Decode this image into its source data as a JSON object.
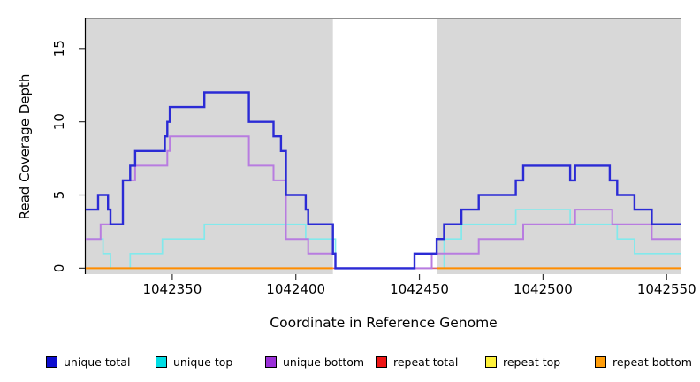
{
  "figure": {
    "background": "#ffffff",
    "x_axis_title": "Coordinate in Reference Genome",
    "y_axis_title": "Read Coverage Depth"
  },
  "legend": {
    "position": "bottom",
    "items": [
      {
        "label": "unique total",
        "marker_color": "#0d0dcf"
      },
      {
        "label": "unique top",
        "marker_color": "#00dde4"
      },
      {
        "label": "unique bottom",
        "marker_color": "#9a30d8"
      },
      {
        "label": "repeat total",
        "marker_color": "#ee1616"
      },
      {
        "label": "repeat top",
        "marker_color": "#fef13a"
      },
      {
        "label": "repeat bottom",
        "marker_color": "#ff9d0a"
      }
    ]
  },
  "chart_data": {
    "type": "line",
    "subtype": "step",
    "title": "",
    "xlabel": "Coordinate in Reference Genome",
    "ylabel": "Read Coverage Depth",
    "xlim": [
      1042315,
      1042556
    ],
    "ylim": [
      -0.4,
      17.1
    ],
    "grid": false,
    "panel_bg": "#d8d8d8",
    "panel_border_top": "#909090",
    "panel_border_right": "#b5b5b5",
    "axis_color": "#000000",
    "gap_region": {
      "x_start": 1042415,
      "x_end": 1042457,
      "color": "#ffffff"
    },
    "x_ticks": [
      1042350,
      1042400,
      1042450,
      1042500,
      1042550
    ],
    "x_tick_labels": [
      "1042350",
      "1042400",
      "1042450",
      "1042500",
      "1042550"
    ],
    "y_ticks": [
      0,
      5,
      10,
      15
    ],
    "y_tick_labels": [
      "0",
      "5",
      "10",
      "15"
    ],
    "series": [
      {
        "name": "unique top",
        "line_color": "#82e9ec",
        "line_width": 1.7,
        "draw_order": 1,
        "segments": [
          {
            "points": [
              [
                1042315,
                2
              ],
              [
                1042322,
                1
              ],
              [
                1042325,
                0
              ],
              [
                1042333,
                1
              ],
              [
                1042346,
                2
              ],
              [
                1042363,
                3
              ],
              [
                1042404,
                2
              ],
              [
                1042416,
                0
              ],
              [
                1042460,
                2
              ],
              [
                1042467,
                3
              ],
              [
                1042489,
                4
              ],
              [
                1042511,
                3
              ],
              [
                1042530,
                2
              ],
              [
                1042537,
                1
              ]
            ],
            "xend": 1042556
          }
        ]
      },
      {
        "name": "repeat total",
        "line_color": "#e0607a",
        "line_width": 1.5,
        "draw_order": 2,
        "segments": [
          {
            "points": [
              [
                1042415,
                0
              ]
            ],
            "xend": 1042457
          }
        ]
      },
      {
        "name": "repeat top",
        "line_color": "#f2f200",
        "line_width": 1.5,
        "draw_order": 3,
        "segments": [
          {
            "points": [
              [
                1042315,
                0
              ]
            ],
            "xend": 1042415
          },
          {
            "points": [
              [
                1042457,
                0
              ]
            ],
            "xend": 1042556
          }
        ]
      },
      {
        "name": "unique bottom",
        "line_color": "#b87ce0",
        "line_width": 2,
        "draw_order": 4,
        "segments": [
          {
            "points": [
              [
                1042315,
                2
              ],
              [
                1042321,
                3
              ],
              [
                1042330,
                6
              ],
              [
                1042335,
                7
              ],
              [
                1042348,
                8
              ],
              [
                1042349,
                9
              ],
              [
                1042381,
                7
              ],
              [
                1042391,
                6
              ],
              [
                1042396,
                2
              ],
              [
                1042405,
                1
              ],
              [
                1042416,
                0
              ],
              [
                1042455,
                1
              ],
              [
                1042474,
                2
              ],
              [
                1042492,
                3
              ],
              [
                1042513,
                4
              ],
              [
                1042528,
                3
              ],
              [
                1042544,
                2
              ]
            ],
            "xend": 1042556
          }
        ]
      },
      {
        "name": "unique total",
        "line_color": "#2b2bd5",
        "line_width": 2.4,
        "draw_order": 5,
        "segments": [
          {
            "points": [
              [
                1042315,
                4
              ],
              [
                1042320,
                5
              ],
              [
                1042324,
                4
              ],
              [
                1042325,
                3
              ],
              [
                1042330,
                6
              ],
              [
                1042333,
                7
              ],
              [
                1042335,
                8
              ],
              [
                1042347,
                9
              ],
              [
                1042348,
                10
              ],
              [
                1042349,
                11
              ],
              [
                1042363,
                12
              ],
              [
                1042381,
                10
              ],
              [
                1042391,
                9
              ],
              [
                1042394,
                8
              ],
              [
                1042396,
                5
              ],
              [
                1042404,
                4
              ],
              [
                1042405,
                3
              ],
              [
                1042415,
                1
              ],
              [
                1042416,
                0
              ],
              [
                1042448,
                1
              ],
              [
                1042457,
                2
              ],
              [
                1042460,
                3
              ],
              [
                1042467,
                4
              ],
              [
                1042474,
                5
              ],
              [
                1042489,
                6
              ],
              [
                1042492,
                7
              ],
              [
                1042511,
                6
              ],
              [
                1042513,
                7
              ],
              [
                1042527,
                6
              ],
              [
                1042530,
                5
              ],
              [
                1042537,
                4
              ],
              [
                1042544,
                3
              ]
            ],
            "xend": 1042556
          }
        ]
      },
      {
        "name": "repeat bottom",
        "line_color": "#ff8c00",
        "line_width": 2,
        "draw_order": 6,
        "segments": [
          {
            "points": [
              [
                1042315,
                0
              ]
            ],
            "xend": 1042415
          },
          {
            "points": [
              [
                1042457,
                0
              ]
            ],
            "xend": 1042556
          }
        ]
      }
    ]
  }
}
